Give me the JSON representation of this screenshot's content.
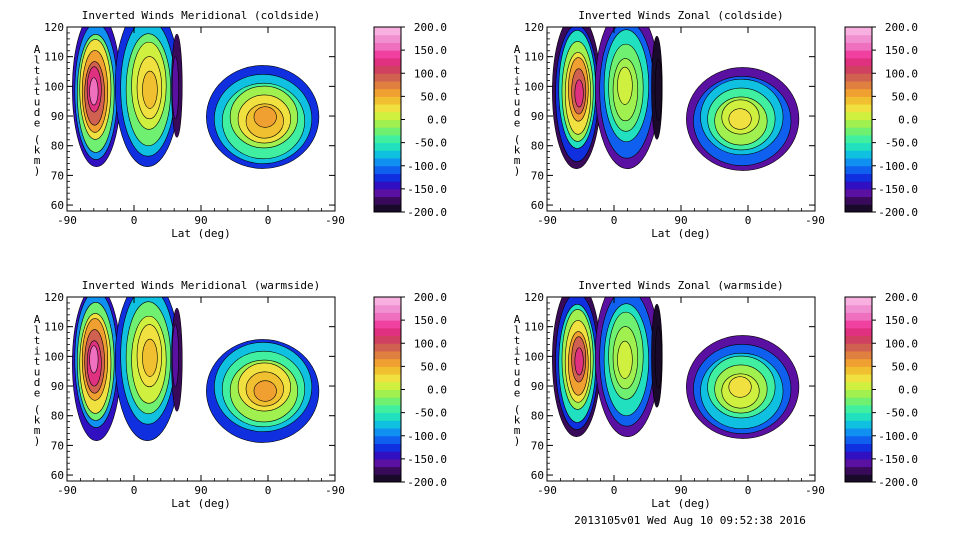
{
  "footer": "2013105v01 Wed Aug 10 09:52:38 2016",
  "colorbar": {
    "labels": [
      "200.0",
      "150.0",
      "100.0",
      "50.0",
      "0.0",
      "-50.0",
      "-100.0",
      "-150.0",
      "-200.0"
    ],
    "colors": [
      "#1a0a2a",
      "#3a0a5a",
      "#5a10a0",
      "#3010c0",
      "#1030e0",
      "#1060f0",
      "#1090f0",
      "#10c0e0",
      "#20e0c0",
      "#40f0a0",
      "#70f070",
      "#a0f050",
      "#d0f040",
      "#f0e040",
      "#f0c030",
      "#f0a030",
      "#e08040",
      "#d06050",
      "#d04060",
      "#e03080",
      "#f040a0",
      "#f070c0",
      "#f090d0",
      "#f8b0e0"
    ]
  },
  "chart_data": [
    {
      "type": "heatmap",
      "title": "Inverted Winds Meridional (coldside)",
      "xlabel": "Lat (deg)",
      "ylabel": "Altitude (km)",
      "xticks": [
        "-90",
        "0",
        "90",
        "0",
        "-90"
      ],
      "yticks": [
        "60",
        "70",
        "80",
        "90",
        "100",
        "110",
        "120"
      ],
      "ylim": [
        58,
        120
      ],
      "zlim": [
        -200,
        200
      ]
    },
    {
      "type": "heatmap",
      "title": "Inverted Winds Zonal (coldside)",
      "xlabel": "Lat (deg)",
      "ylabel": "Altitude (km)",
      "xticks": [
        "-90",
        "0",
        "90",
        "0",
        "-90"
      ],
      "yticks": [
        "60",
        "70",
        "80",
        "90",
        "100",
        "110",
        "120"
      ],
      "ylim": [
        58,
        120
      ],
      "zlim": [
        -200,
        200
      ]
    },
    {
      "type": "heatmap",
      "title": "Inverted Winds Meridional (warmside)",
      "xlabel": "Lat (deg)",
      "ylabel": "Altitude (km)",
      "xticks": [
        "-90",
        "0",
        "90",
        "0",
        "-90"
      ],
      "yticks": [
        "60",
        "70",
        "80",
        "90",
        "100",
        "110",
        "120"
      ],
      "ylim": [
        58,
        120
      ],
      "zlim": [
        -200,
        200
      ]
    },
    {
      "type": "heatmap",
      "title": "Inverted Winds Zonal (warmside)",
      "xlabel": "Lat (deg)",
      "ylabel": "Altitude (km)",
      "xticks": [
        "-90",
        "0",
        "90",
        "0",
        "-90"
      ],
      "yticks": [
        "60",
        "70",
        "80",
        "90",
        "100",
        "110",
        "120"
      ],
      "ylim": [
        58,
        120
      ],
      "zlim": [
        -200,
        200
      ]
    }
  ]
}
